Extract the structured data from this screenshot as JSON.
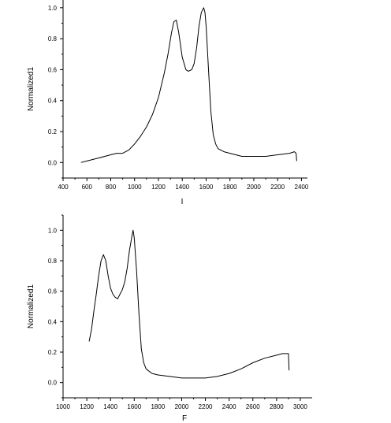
{
  "chart_data": [
    {
      "type": "line",
      "xlabel": "I",
      "ylabel": "Normalized1",
      "xlim": [
        400,
        2450
      ],
      "ylim": [
        -0.1,
        1.05
      ],
      "xticks": [
        400,
        600,
        800,
        1000,
        1200,
        1400,
        1600,
        1800,
        2000,
        2200,
        2400
      ],
      "yticks": [
        0.0,
        0.2,
        0.4,
        0.6,
        0.8,
        1.0
      ],
      "ytick_labels": [
        "0.0",
        "0.2",
        "0.4",
        "0.6",
        "0.8",
        "1.0"
      ],
      "grid": false,
      "series": [
        {
          "x": [
            550,
            600,
            700,
            800,
            850,
            900,
            950,
            1000,
            1050,
            1100,
            1150,
            1200,
            1250,
            1280,
            1310,
            1330,
            1350,
            1370,
            1400,
            1430,
            1450,
            1480,
            1500,
            1520,
            1540,
            1560,
            1580,
            1590,
            1600,
            1620,
            1640,
            1660,
            1680,
            1700,
            1750,
            1800,
            1900,
            2000,
            2100,
            2200,
            2300,
            2340,
            2355,
            2360
          ],
          "y": [
            0.0,
            0.01,
            0.03,
            0.05,
            0.06,
            0.06,
            0.08,
            0.12,
            0.17,
            0.23,
            0.31,
            0.42,
            0.58,
            0.7,
            0.84,
            0.91,
            0.92,
            0.84,
            0.68,
            0.6,
            0.59,
            0.6,
            0.64,
            0.74,
            0.88,
            0.97,
            1.0,
            0.97,
            0.88,
            0.6,
            0.33,
            0.18,
            0.12,
            0.09,
            0.07,
            0.06,
            0.04,
            0.04,
            0.04,
            0.05,
            0.06,
            0.07,
            0.06,
            0.01
          ]
        }
      ]
    },
    {
      "type": "line",
      "xlabel": "F",
      "ylabel": "Normalized1",
      "xlim": [
        1000,
        3100
      ],
      "ylim": [
        -0.1,
        1.1
      ],
      "xticks": [
        1000,
        1200,
        1400,
        1600,
        1800,
        2000,
        2200,
        2400,
        2600,
        2800,
        3000
      ],
      "yticks": [
        0.0,
        0.2,
        0.4,
        0.6,
        0.8,
        1.0
      ],
      "ytick_labels": [
        "0.0",
        "0.2",
        "0.4",
        "0.6",
        "0.8",
        "1.0"
      ],
      "grid": false,
      "series": [
        {
          "x": [
            1220,
            1240,
            1260,
            1280,
            1300,
            1320,
            1340,
            1360,
            1380,
            1400,
            1420,
            1440,
            1460,
            1480,
            1500,
            1520,
            1540,
            1560,
            1580,
            1590,
            1600,
            1620,
            1640,
            1660,
            1680,
            1700,
            1750,
            1800,
            1900,
            2000,
            2100,
            2200,
            2300,
            2400,
            2500,
            2600,
            2700,
            2800,
            2850,
            2880,
            2900,
            2905
          ],
          "y": [
            0.27,
            0.35,
            0.47,
            0.58,
            0.7,
            0.8,
            0.84,
            0.8,
            0.7,
            0.62,
            0.58,
            0.56,
            0.55,
            0.58,
            0.61,
            0.66,
            0.75,
            0.87,
            0.96,
            1.0,
            0.95,
            0.73,
            0.45,
            0.22,
            0.13,
            0.09,
            0.06,
            0.05,
            0.04,
            0.03,
            0.03,
            0.03,
            0.04,
            0.06,
            0.09,
            0.13,
            0.16,
            0.18,
            0.19,
            0.19,
            0.19,
            0.08
          ]
        }
      ]
    }
  ]
}
